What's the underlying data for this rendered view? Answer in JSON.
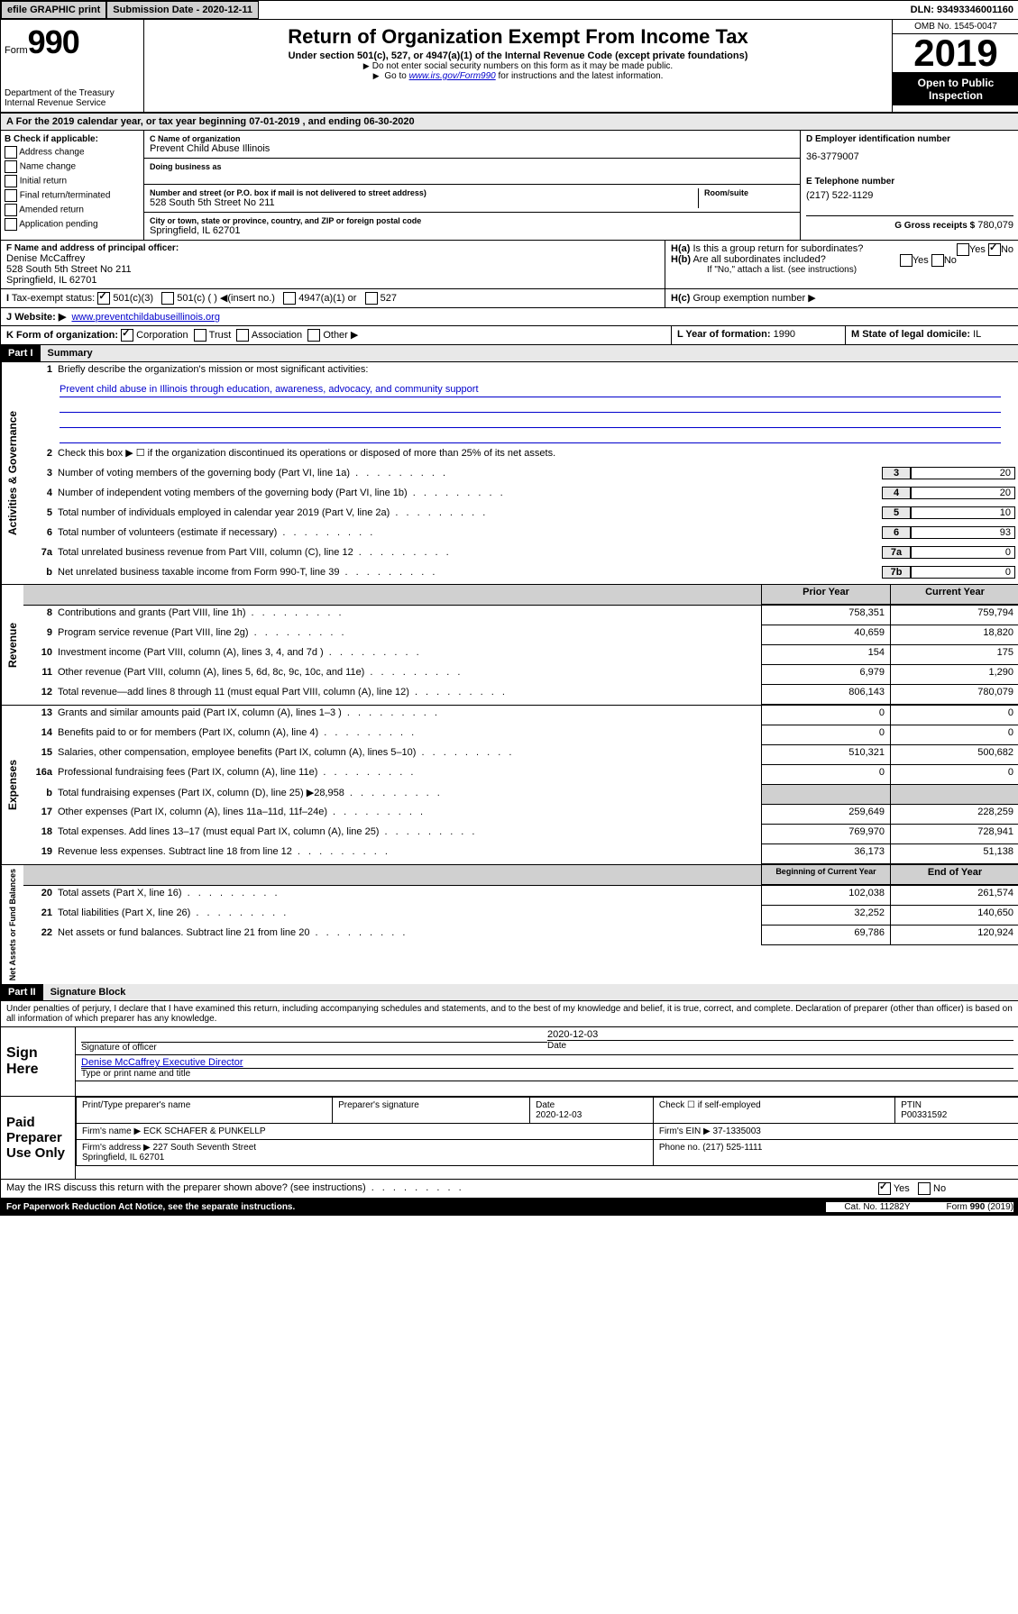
{
  "topbar": {
    "efile": "efile GRAPHIC print",
    "submission_label": "Submission Date - 2020-12-11",
    "dln": "DLN: 93493346001160"
  },
  "header": {
    "form_prefix": "Form",
    "form_number": "990",
    "dept": "Department of the Treasury\nInternal Revenue Service",
    "title": "Return of Organization Exempt From Income Tax",
    "subtitle": "Under section 501(c), 527, or 4947(a)(1) of the Internal Revenue Code (except private foundations)",
    "note1": "Do not enter social security numbers on this form as it may be made public.",
    "note2_pre": "Go to ",
    "note2_link": "www.irs.gov/Form990",
    "note2_post": " for instructions and the latest information.",
    "omb": "OMB No. 1545-0047",
    "year": "2019",
    "open": "Open to Public Inspection"
  },
  "period": {
    "text": "For the 2019 calendar year, or tax year beginning 07-01-2019    , and ending 06-30-2020"
  },
  "section_b": {
    "label": "B Check if applicable:",
    "opts": [
      "Address change",
      "Name change",
      "Initial return",
      "Final return/terminated",
      "Amended return",
      "Application pending"
    ]
  },
  "section_c": {
    "name_label": "C Name of organization",
    "name": "Prevent Child Abuse Illinois",
    "dba_label": "Doing business as",
    "dba": "",
    "addr_label": "Number and street (or P.O. box if mail is not delivered to street address)",
    "room_label": "Room/suite",
    "addr": "528 South 5th Street No 211",
    "city_label": "City or town, state or province, country, and ZIP or foreign postal code",
    "city": "Springfield, IL  62701"
  },
  "section_d": {
    "ein_label": "D Employer identification number",
    "ein": "36-3779007",
    "tel_label": "E Telephone number",
    "tel": "(217) 522-1129",
    "gross_label": "G Gross receipts $",
    "gross": "780,079"
  },
  "section_f": {
    "label": "F  Name and address of principal officer:",
    "name": "Denise McCaffrey",
    "addr": "528 South 5th Street No 211\nSpringfield, IL  62701"
  },
  "section_h": {
    "a": "Is this a group return for subordinates?",
    "b": "Are all subordinates included?",
    "b_note": "If \"No,\" attach a list. (see instructions)",
    "c": "Group exemption number ▶"
  },
  "tax_status": {
    "label": "Tax-exempt status:",
    "opt1": "501(c)(3)",
    "opt2": "501(c) (  ) ◀(insert no.)",
    "opt3": "4947(a)(1) or",
    "opt4": "527"
  },
  "website": {
    "label": "Website: ▶",
    "value": "www.preventchildabuseillinois.org"
  },
  "section_k": {
    "label": "K Form of organization:",
    "opts": [
      "Corporation",
      "Trust",
      "Association",
      "Other ▶"
    ]
  },
  "section_l": {
    "label": "L Year of formation:",
    "value": "1990"
  },
  "section_m": {
    "label": "M State of legal domicile:",
    "value": "IL"
  },
  "part1": {
    "header": "Part I",
    "title": "Summary",
    "q1": "Briefly describe the organization's mission or most significant activities:",
    "mission": "Prevent child abuse in Illinois through education, awareness, advocacy, and community support",
    "q2": "Check this box ▶ ☐  if the organization discontinued its operations or disposed of more than 25% of its net assets.",
    "lines_gov": [
      {
        "n": "3",
        "t": "Number of voting members of the governing body (Part VI, line 1a)",
        "box": "3",
        "v": "20"
      },
      {
        "n": "4",
        "t": "Number of independent voting members of the governing body (Part VI, line 1b)",
        "box": "4",
        "v": "20"
      },
      {
        "n": "5",
        "t": "Total number of individuals employed in calendar year 2019 (Part V, line 2a)",
        "box": "5",
        "v": "10"
      },
      {
        "n": "6",
        "t": "Total number of volunteers (estimate if necessary)",
        "box": "6",
        "v": "93"
      },
      {
        "n": "7a",
        "t": "Total unrelated business revenue from Part VIII, column (C), line 12",
        "box": "7a",
        "v": "0"
      },
      {
        "n": "b",
        "t": "Net unrelated business taxable income from Form 990-T, line 39",
        "box": "7b",
        "v": "0"
      }
    ],
    "col_headers": {
      "prior": "Prior Year",
      "current": "Current Year"
    },
    "revenue": [
      {
        "n": "8",
        "t": "Contributions and grants (Part VIII, line 1h)",
        "p": "758,351",
        "c": "759,794"
      },
      {
        "n": "9",
        "t": "Program service revenue (Part VIII, line 2g)",
        "p": "40,659",
        "c": "18,820"
      },
      {
        "n": "10",
        "t": "Investment income (Part VIII, column (A), lines 3, 4, and 7d )",
        "p": "154",
        "c": "175"
      },
      {
        "n": "11",
        "t": "Other revenue (Part VIII, column (A), lines 5, 6d, 8c, 9c, 10c, and 11e)",
        "p": "6,979",
        "c": "1,290"
      },
      {
        "n": "12",
        "t": "Total revenue—add lines 8 through 11 (must equal Part VIII, column (A), line 12)",
        "p": "806,143",
        "c": "780,079"
      }
    ],
    "expenses": [
      {
        "n": "13",
        "t": "Grants and similar amounts paid (Part IX, column (A), lines 1–3 )",
        "p": "0",
        "c": "0"
      },
      {
        "n": "14",
        "t": "Benefits paid to or for members (Part IX, column (A), line 4)",
        "p": "0",
        "c": "0"
      },
      {
        "n": "15",
        "t": "Salaries, other compensation, employee benefits (Part IX, column (A), lines 5–10)",
        "p": "510,321",
        "c": "500,682"
      },
      {
        "n": "16a",
        "t": "Professional fundraising fees (Part IX, column (A), line 11e)",
        "p": "0",
        "c": "0"
      },
      {
        "n": "b",
        "t": "Total fundraising expenses (Part IX, column (D), line 25) ▶28,958",
        "p": "",
        "c": "",
        "shaded": true
      },
      {
        "n": "17",
        "t": "Other expenses (Part IX, column (A), lines 11a–11d, 11f–24e)",
        "p": "259,649",
        "c": "228,259"
      },
      {
        "n": "18",
        "t": "Total expenses. Add lines 13–17 (must equal Part IX, column (A), line 25)",
        "p": "769,970",
        "c": "728,941"
      },
      {
        "n": "19",
        "t": "Revenue less expenses. Subtract line 18 from line 12",
        "p": "36,173",
        "c": "51,138"
      }
    ],
    "net_headers": {
      "begin": "Beginning of Current Year",
      "end": "End of Year"
    },
    "net": [
      {
        "n": "20",
        "t": "Total assets (Part X, line 16)",
        "p": "102,038",
        "c": "261,574"
      },
      {
        "n": "21",
        "t": "Total liabilities (Part X, line 26)",
        "p": "32,252",
        "c": "140,650"
      },
      {
        "n": "22",
        "t": "Net assets or fund balances. Subtract line 21 from line 20",
        "p": "69,786",
        "c": "120,924"
      }
    ]
  },
  "sidebars": {
    "gov": "Activities & Governance",
    "rev": "Revenue",
    "exp": "Expenses",
    "net": "Net Assets or Fund Balances"
  },
  "part2": {
    "header": "Part II",
    "title": "Signature Block",
    "perjury": "Under penalties of perjury, I declare that I have examined this return, including accompanying schedules and statements, and to the best of my knowledge and belief, it is true, correct, and complete. Declaration of preparer (other than officer) is based on all information of which preparer has any knowledge.",
    "sign_here": "Sign Here",
    "sig_officer": "Signature of officer",
    "sig_date": "2020-12-03",
    "date_label": "Date",
    "typed_name": "Denise McCaffrey Executive Director",
    "typed_label": "Type or print name and title"
  },
  "paid": {
    "label": "Paid Preparer Use Only",
    "h1": "Print/Type preparer's name",
    "h2": "Preparer's signature",
    "h3": "Date",
    "h3v": "2020-12-03",
    "h4": "Check ☐ if self-employed",
    "h5": "PTIN",
    "h5v": "P00331592",
    "firm_name_label": "Firm's name    ▶",
    "firm_name": "ECK SCHAFER & PUNKELLP",
    "firm_ein_label": "Firm's EIN ▶",
    "firm_ein": "37-1335003",
    "firm_addr_label": "Firm's address ▶",
    "firm_addr": "227 South Seventh Street\nSpringfield, IL  62701",
    "phone_label": "Phone no.",
    "phone": "(217) 525-1111"
  },
  "discuss": {
    "text": "May the IRS discuss this return with the preparer shown above? (see instructions)",
    "yes": "Yes",
    "no": "No"
  },
  "footer": {
    "left": "For Paperwork Reduction Act Notice, see the separate instructions.",
    "mid": "Cat. No. 11282Y",
    "right": "Form 990 (2019)"
  }
}
